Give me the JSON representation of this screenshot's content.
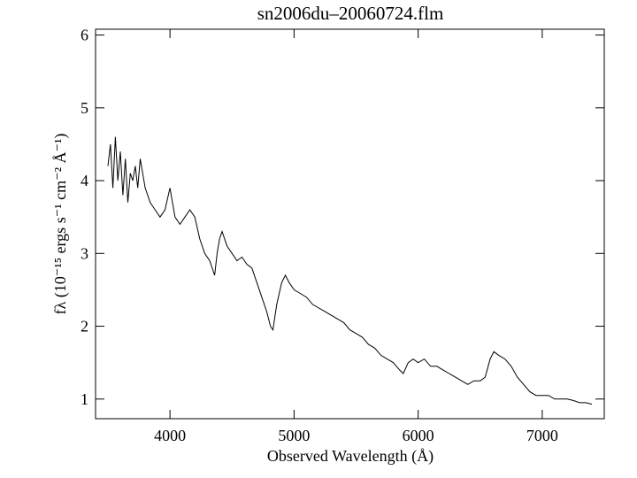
{
  "chart_data": {
    "type": "line",
    "title": "sn2006du–20060724.flm",
    "x_label": "Observed Wavelength (Å)",
    "y_label": "fλ (10⁻¹⁵ ergs s⁻¹ cm⁻² Å⁻¹)",
    "color": "#000000",
    "xlim": [
      3400,
      7500
    ],
    "xticks": [
      4000,
      5000,
      6000,
      7000
    ],
    "ylim": [
      0.73,
      6.08
    ],
    "yticks": [
      1,
      2,
      3,
      4,
      5,
      6
    ],
    "x": [
      3500,
      3520,
      3540,
      3560,
      3580,
      3600,
      3620,
      3640,
      3660,
      3680,
      3700,
      3720,
      3740,
      3760,
      3780,
      3800,
      3840,
      3880,
      3920,
      3960,
      4000,
      4040,
      4080,
      4120,
      4160,
      4200,
      4240,
      4280,
      4320,
      4360,
      4380,
      4400,
      4420,
      4460,
      4500,
      4540,
      4580,
      4620,
      4660,
      4700,
      4740,
      4780,
      4810,
      4830,
      4860,
      4900,
      4930,
      4960,
      5000,
      5050,
      5100,
      5150,
      5200,
      5250,
      5300,
      5350,
      5400,
      5450,
      5500,
      5550,
      5600,
      5650,
      5700,
      5750,
      5800,
      5850,
      5880,
      5920,
      5960,
      6000,
      6050,
      6100,
      6150,
      6200,
      6250,
      6300,
      6350,
      6400,
      6450,
      6500,
      6540,
      6580,
      6610,
      6650,
      6700,
      6750,
      6800,
      6850,
      6900,
      6950,
      7000,
      7050,
      7100,
      7150,
      7200,
      7250,
      7300,
      7350,
      7400
    ],
    "values": [
      4.2,
      4.5,
      3.9,
      4.6,
      4.0,
      4.4,
      3.8,
      4.3,
      3.7,
      4.1,
      4.0,
      4.2,
      3.9,
      4.3,
      4.1,
      3.9,
      3.7,
      3.6,
      3.5,
      3.6,
      3.9,
      3.5,
      3.4,
      3.5,
      3.6,
      3.5,
      3.2,
      3.0,
      2.9,
      2.7,
      3.0,
      3.2,
      3.3,
      3.1,
      3.0,
      2.9,
      2.95,
      2.85,
      2.8,
      2.6,
      2.4,
      2.2,
      2.0,
      1.95,
      2.3,
      2.6,
      2.7,
      2.6,
      2.5,
      2.45,
      2.4,
      2.3,
      2.25,
      2.2,
      2.15,
      2.1,
      2.05,
      1.95,
      1.9,
      1.85,
      1.75,
      1.7,
      1.6,
      1.55,
      1.5,
      1.4,
      1.35,
      1.5,
      1.55,
      1.5,
      1.55,
      1.45,
      1.45,
      1.4,
      1.35,
      1.3,
      1.25,
      1.2,
      1.25,
      1.25,
      1.3,
      1.55,
      1.65,
      1.6,
      1.55,
      1.45,
      1.3,
      1.2,
      1.1,
      1.05,
      1.05,
      1.05,
      1.0,
      1.0,
      1.0,
      0.98,
      0.95,
      0.95,
      0.93
    ]
  }
}
